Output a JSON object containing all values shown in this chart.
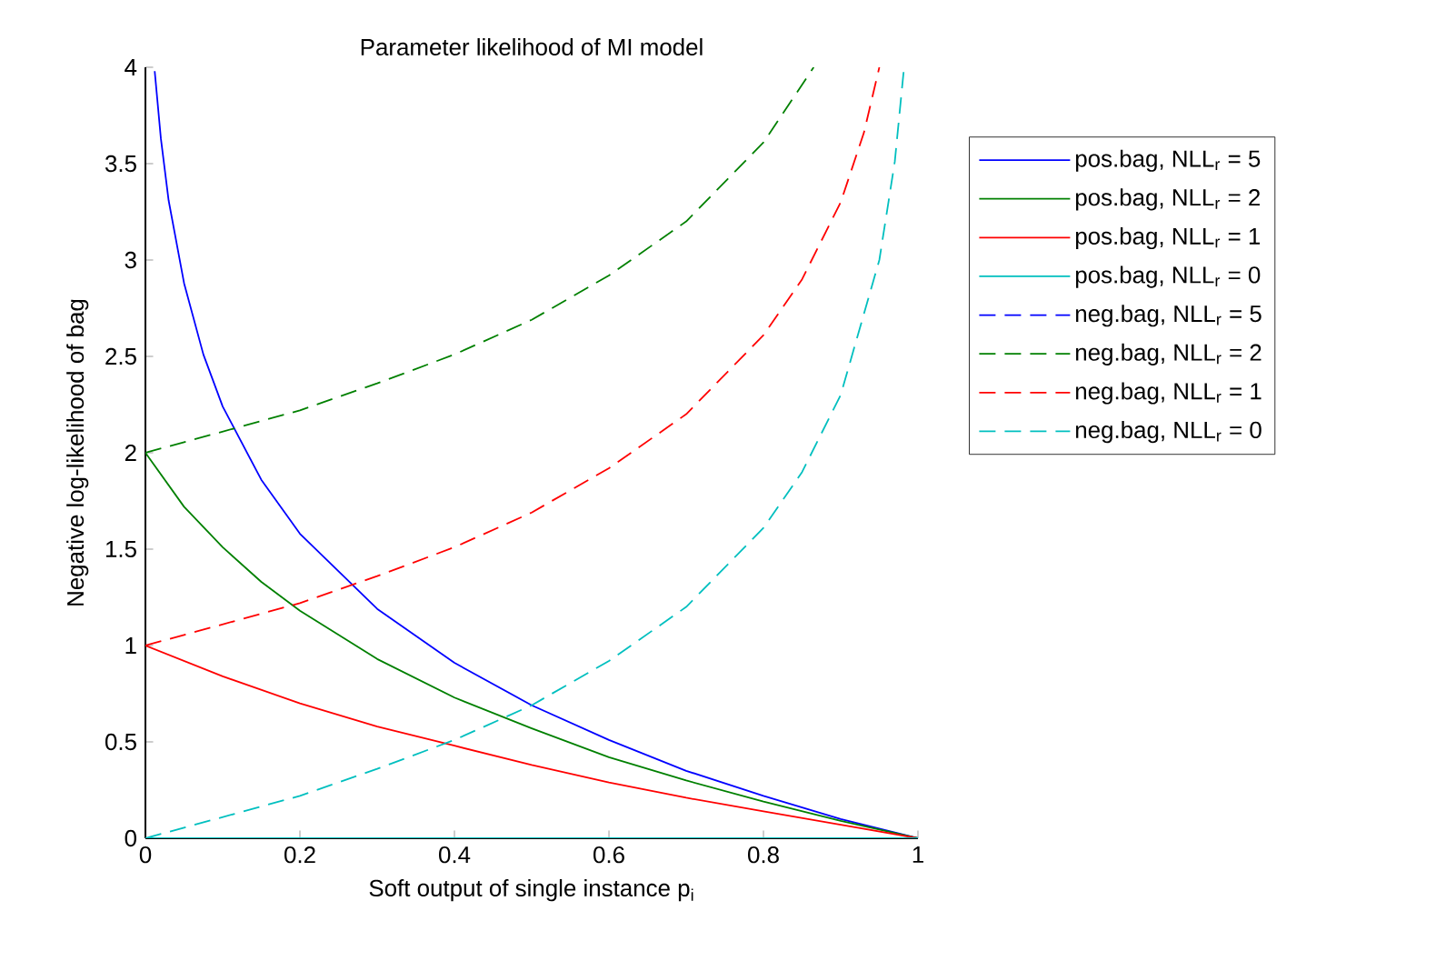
{
  "chart_data": {
    "type": "line",
    "title": "Parameter likelihood of MI model",
    "xlabel": "Soft output of single instance p$_{i}$",
    "ylabel": "Negative log-likelihood of bag",
    "xlim": [
      0,
      1
    ],
    "ylim": [
      0,
      4
    ],
    "xticks": [
      0,
      0.2,
      0.4,
      0.6,
      0.8,
      1
    ],
    "yticks": [
      0,
      0.5,
      1,
      1.5,
      2,
      2.5,
      3,
      3.5,
      4
    ],
    "grid": false,
    "legend": "right",
    "marker": "none",
    "series": [
      {
        "name": "pos.bag, NLL$_{r}$ = 5",
        "color": "#0000ff",
        "line_style": "solid",
        "x": [
          0.012,
          0.02,
          0.03,
          0.05,
          0.075,
          0.1,
          0.15,
          0.2,
          0.3,
          0.4,
          0.5,
          0.6,
          0.7,
          0.8,
          0.9,
          1
        ],
        "values": [
          3.98,
          3.63,
          3.31,
          2.88,
          2.51,
          2.24,
          1.86,
          1.58,
          1.19,
          0.91,
          0.69,
          0.51,
          0.35,
          0.22,
          0.1,
          0
        ]
      },
      {
        "name": "pos.bag, NLL$_{r}$ = 2",
        "color": "#008000",
        "line_style": "solid",
        "x": [
          0,
          0.05,
          0.1,
          0.15,
          0.2,
          0.3,
          0.4,
          0.5,
          0.6,
          0.7,
          0.8,
          0.9,
          1
        ],
        "values": [
          2,
          1.72,
          1.51,
          1.33,
          1.18,
          0.93,
          0.73,
          0.57,
          0.42,
          0.3,
          0.19,
          0.09,
          0
        ]
      },
      {
        "name": "pos.bag, NLL$_{r}$ = 1",
        "color": "#ff0000",
        "line_style": "solid",
        "x": [
          0,
          0.1,
          0.2,
          0.3,
          0.4,
          0.5,
          0.6,
          0.7,
          0.8,
          0.9,
          1
        ],
        "values": [
          1,
          0.84,
          0.7,
          0.58,
          0.48,
          0.38,
          0.29,
          0.21,
          0.14,
          0.07,
          0
        ]
      },
      {
        "name": "pos.bag, NLL$_{r}$ = 0",
        "color": "#00bfbf",
        "line_style": "solid",
        "x": [
          0,
          1
        ],
        "values": [
          0,
          0
        ]
      },
      {
        "name": "neg.bag, NLL$_{r}$ = 5",
        "color": "#0000ff",
        "line_style": "dashed"
      },
      {
        "name": "neg.bag, NLL$_{r}$ = 2",
        "color": "#008000",
        "line_style": "dashed",
        "x": [
          0,
          0.1,
          0.2,
          0.3,
          0.4,
          0.5,
          0.6,
          0.7,
          0.8,
          0.865
        ],
        "values": [
          2,
          2.11,
          2.22,
          2.36,
          2.51,
          2.69,
          2.92,
          3.2,
          3.61,
          4
        ]
      },
      {
        "name": "neg.bag, NLL$_{r}$ = 1",
        "color": "#ff0000",
        "line_style": "dashed",
        "x": [
          0,
          0.1,
          0.2,
          0.3,
          0.4,
          0.5,
          0.6,
          0.7,
          0.8,
          0.85,
          0.9,
          0.93,
          0.95
        ],
        "values": [
          1,
          1.11,
          1.22,
          1.36,
          1.51,
          1.69,
          1.92,
          2.2,
          2.61,
          2.9,
          3.3,
          3.66,
          4
        ]
      },
      {
        "name": "neg.bag, NLL$_{r}$ = 0",
        "color": "#00bfbf",
        "line_style": "dashed",
        "x": [
          0,
          0.1,
          0.2,
          0.3,
          0.4,
          0.5,
          0.6,
          0.7,
          0.8,
          0.85,
          0.9,
          0.95,
          0.97,
          0.982
        ],
        "values": [
          0,
          0.11,
          0.22,
          0.36,
          0.51,
          0.69,
          0.92,
          1.2,
          1.61,
          1.9,
          2.3,
          3,
          3.51,
          4
        ]
      }
    ]
  }
}
